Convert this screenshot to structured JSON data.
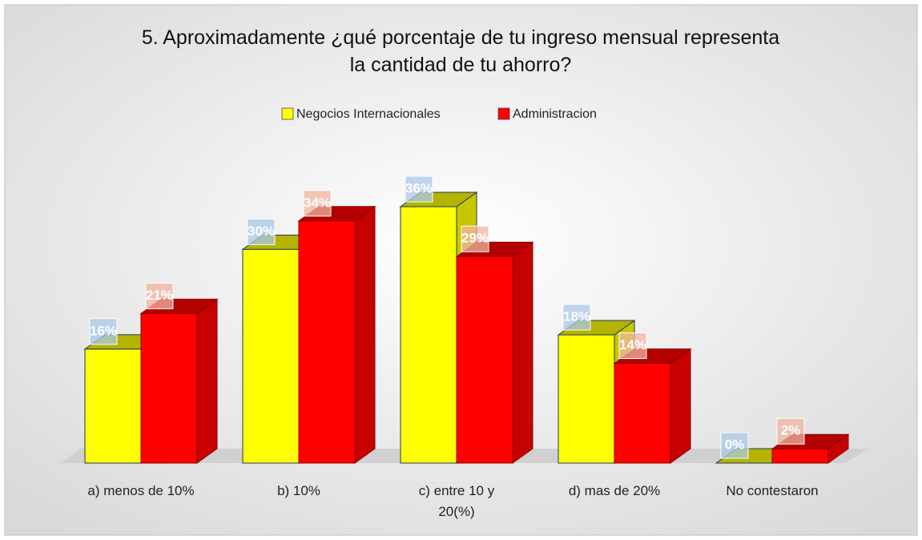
{
  "chart_data": {
    "type": "bar3d",
    "title": "5. Aproximadamente ¿qué porcentaje de tu ingreso mensual representa la cantidad de tu ahorro?",
    "categories": [
      "a) menos de 10%",
      "b) 10%",
      "c) entre 10 y 20(%)",
      "d) mas de 20%",
      "No contestaron"
    ],
    "series": [
      {
        "name": "Negocios Internacionales",
        "color": "#ffff00",
        "values": [
          16,
          30,
          36,
          18,
          0
        ],
        "value_labels": [
          "16%",
          "30%",
          "36%",
          "18%",
          "0%"
        ]
      },
      {
        "name": "Administracion",
        "color": "#ff0000",
        "values": [
          21,
          34,
          29,
          14,
          2
        ],
        "value_labels": [
          "21%",
          "34%",
          "29%",
          "14%",
          "2%"
        ]
      }
    ],
    "legend": "top"
  }
}
